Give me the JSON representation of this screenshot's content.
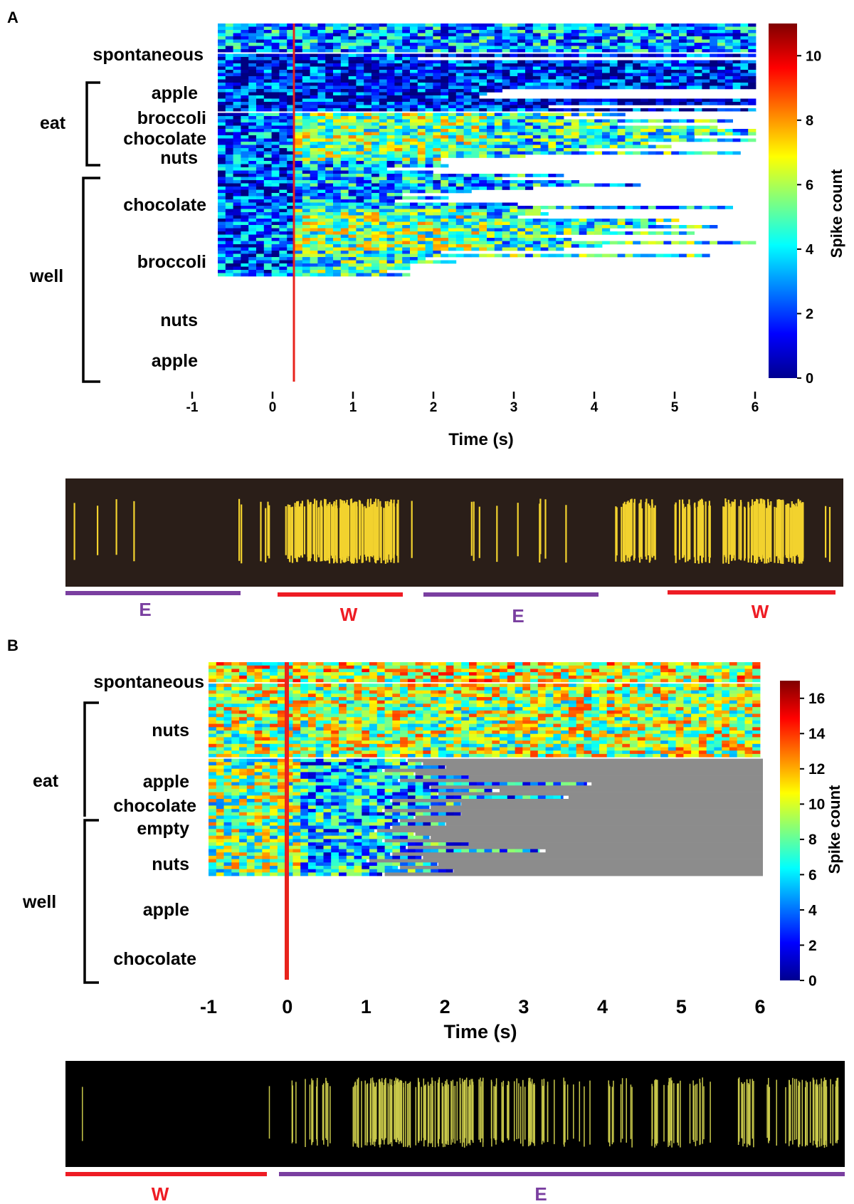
{
  "panels": {
    "A": {
      "letter": "A",
      "xlabel": "Time (s)",
      "xticks": [
        "-1",
        "0",
        "1",
        "2",
        "3",
        "4",
        "5",
        "6"
      ],
      "colorbar": {
        "label": "Spike count",
        "ticks": [
          "0",
          "2",
          "4",
          "6",
          "8",
          "10"
        ],
        "max": 11
      },
      "group_labels": [
        "eat",
        "well"
      ],
      "row_labels": [
        "spontaneous",
        "apple",
        "broccoli",
        "chocolate",
        "nuts",
        "chocolate",
        "broccoli",
        "nuts",
        "apple"
      ],
      "trace_labels": [
        "E",
        "W",
        "E",
        "W"
      ]
    },
    "B": {
      "letter": "B",
      "xlabel": "Time (s)",
      "xticks": [
        "-1",
        "0",
        "1",
        "2",
        "3",
        "4",
        "5",
        "6"
      ],
      "colorbar": {
        "label": "Spike count",
        "ticks": [
          "0",
          "2",
          "4",
          "6",
          "8",
          "10",
          "12",
          "14",
          "16"
        ],
        "max": 17
      },
      "group_labels": [
        "eat",
        "well"
      ],
      "row_labels": [
        "spontaneous",
        "nuts",
        "apple",
        "chocolate",
        "empty",
        "nuts",
        "apple",
        "chocolate"
      ],
      "trace_labels": [
        "W",
        "E"
      ]
    }
  },
  "colors": {
    "event_line": "#e8231c",
    "purple_bar": "#7a3fa0",
    "red_bar": "#ee1c24",
    "spike": "#f2d22e",
    "trace_bg_A": "#2a1e18",
    "trace_bg_B": "#000000",
    "after_trial_B": "#8c8c8c"
  },
  "chart_data": [
    {
      "type": "heatmap",
      "panel": "A",
      "xlabel": "Time (s)",
      "xlim": [
        -1,
        6
      ],
      "colorbar_label": "Spike count",
      "colorbar_range": [
        0,
        11
      ],
      "conditions": [
        {
          "group": "",
          "label": "spontaneous",
          "trial_end_s": [
            6,
            6,
            6,
            6,
            6,
            6,
            6,
            6,
            6
          ]
        },
        {
          "group": "eat",
          "label": "apple",
          "trial_end_s": [
            6,
            1.6,
            6,
            6,
            6
          ]
        },
        {
          "group": "eat",
          "label": "broccoli",
          "trial_end_s": [
            6,
            6,
            6,
            6,
            6,
            6
          ]
        },
        {
          "group": "eat",
          "label": "chocolate",
          "trial_end_s": [
            2.7,
            2.5,
            2.4
          ]
        },
        {
          "group": "eat",
          "label": "nuts",
          "trial_end_s": [
            6,
            6,
            3.3,
            6
          ]
        },
        {
          "group": "well",
          "label": "chocolate",
          "trial_end_s": [
            4.3,
            3.5,
            5.7,
            4.2,
            5.5,
            6,
            6,
            5.2,
            6,
            4.6,
            4.9,
            3.7,
            5.8,
            3.0,
            1.9
          ]
        },
        {
          "group": "well",
          "label": "broccoli",
          "trial_end_s": [
            1.9,
            2.0,
            1.2,
            1.8,
            3.5,
            2.7,
            3.7,
            4.5,
            3.1,
            2.3,
            1.4,
            2.0,
            1.3,
            2.9,
            5.7
          ]
        },
        {
          "group": "well",
          "label": "nuts",
          "trial_end_s": [
            3.2,
            3.3,
            2.9,
            5.0,
            4.7,
            5.5,
            4.1,
            5.2,
            3.4,
            3.6,
            6.0,
            4.0,
            3.5
          ]
        },
        {
          "group": "well",
          "label": "apple",
          "trial_end_s": [
            1.9,
            5.4,
            1.7,
            2.1,
            1.5,
            1.5,
            1.2,
            1.5
          ]
        }
      ]
    },
    {
      "type": "heatmap",
      "panel": "B",
      "xlabel": "Time (s)",
      "xlim": [
        -1,
        6
      ],
      "colorbar_label": "Spike count",
      "colorbar_range": [
        0,
        17
      ],
      "conditions": [
        {
          "group": "",
          "label": "spontaneous",
          "trial_end_s": [
            6,
            6,
            6,
            6,
            6,
            6
          ]
        },
        {
          "group": "eat",
          "label": "nuts",
          "trial_end_s": [
            6,
            6,
            6,
            6,
            6,
            6,
            6,
            6,
            6,
            6,
            6,
            6
          ]
        },
        {
          "group": "eat",
          "label": "apple",
          "trial_end_s": [
            6,
            6,
            6,
            6,
            6
          ]
        },
        {
          "group": "eat",
          "label": "chocolate",
          "trial_end_s": [
            6,
            6,
            6,
            6,
            6
          ]
        },
        {
          "group": "well",
          "label": "empty",
          "trial_end_s": [
            1.5,
            1.7
          ]
        },
        {
          "group": "well",
          "label": "nuts",
          "trial_end_s": [
            2.0,
            1.2,
            1.6,
            2.3,
            1.4,
            3.8,
            1.8,
            2.6,
            1.9,
            3.5,
            1.3,
            2.2
          ]
        },
        {
          "group": "well",
          "label": "apple",
          "trial_end_s": [
            1.8,
            1.2,
            2.2,
            1.6,
            1.4,
            2.0,
            1.3
          ]
        },
        {
          "group": "well",
          "label": "chocolate",
          "trial_end_s": [
            1.1,
            1.6,
            1.8,
            1.2,
            2.3,
            1.5,
            3.2,
            1.3,
            1.7,
            1.0,
            1.9,
            1.4,
            2.1,
            1.2
          ]
        }
      ]
    }
  ]
}
